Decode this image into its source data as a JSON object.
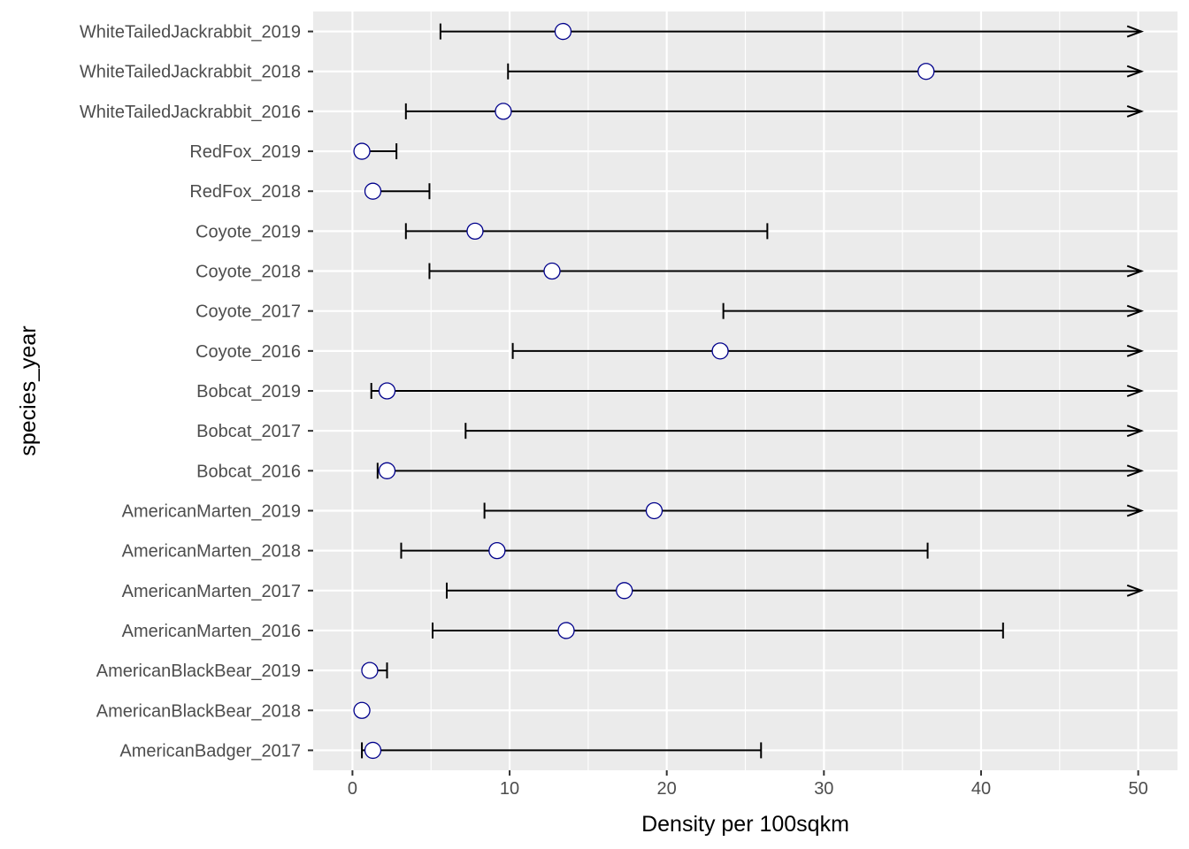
{
  "chart_data": {
    "type": "errorbar",
    "xlabel": "Density per 100sqkm",
    "ylabel": "species_year",
    "xlim": [
      -2.5,
      52.5
    ],
    "x_ticks": [
      0,
      10,
      20,
      30,
      40,
      50
    ],
    "x_minor_ticks": [
      5,
      15,
      25,
      35,
      45
    ],
    "grid": true,
    "legend": "none",
    "colors": {
      "panel_background": "#ebebeb",
      "grid": "#ffffff",
      "point_edge": "#00008b",
      "point_fill": "#ffffff",
      "interval": "#000000",
      "tick_label": "#4d4d4d"
    },
    "categories": [
      "AmericanBadger_2017",
      "AmericanBlackBear_2018",
      "AmericanBlackBear_2019",
      "AmericanMarten_2016",
      "AmericanMarten_2017",
      "AmericanMarten_2018",
      "AmericanMarten_2019",
      "Bobcat_2016",
      "Bobcat_2017",
      "Bobcat_2019",
      "Coyote_2016",
      "Coyote_2017",
      "Coyote_2018",
      "Coyote_2019",
      "RedFox_2018",
      "RedFox_2019",
      "WhiteTailedJackrabbit_2016",
      "WhiteTailedJackrabbit_2018",
      "WhiteTailedJackrabbit_2019"
    ],
    "points": [
      {
        "estimate": 1.3,
        "lower": 0.6,
        "upper": 26.0,
        "upper_truncated": false
      },
      {
        "estimate": 0.6,
        "lower": 0.5,
        "upper": 0.7,
        "upper_truncated": false
      },
      {
        "estimate": 1.1,
        "lower": 1.0,
        "upper": 2.2,
        "upper_truncated": false
      },
      {
        "estimate": 13.6,
        "lower": 5.1,
        "upper": 41.4,
        "upper_truncated": false
      },
      {
        "estimate": 17.3,
        "lower": 6.0,
        "upper": 50.2,
        "upper_truncated": true
      },
      {
        "estimate": 9.2,
        "lower": 3.1,
        "upper": 36.6,
        "upper_truncated": false
      },
      {
        "estimate": 19.2,
        "lower": 8.4,
        "upper": 50.2,
        "upper_truncated": true
      },
      {
        "estimate": 2.2,
        "lower": 1.6,
        "upper": 50.2,
        "upper_truncated": true
      },
      {
        "estimate": null,
        "lower": 7.2,
        "upper": 50.2,
        "upper_truncated": true
      },
      {
        "estimate": 2.2,
        "lower": 1.2,
        "upper": 50.2,
        "upper_truncated": true
      },
      {
        "estimate": 23.4,
        "lower": 10.2,
        "upper": 50.2,
        "upper_truncated": true
      },
      {
        "estimate": null,
        "lower": 23.6,
        "upper": 50.2,
        "upper_truncated": true
      },
      {
        "estimate": 12.7,
        "lower": 4.9,
        "upper": 50.2,
        "upper_truncated": true
      },
      {
        "estimate": 7.8,
        "lower": 3.4,
        "upper": 26.4,
        "upper_truncated": false
      },
      {
        "estimate": 1.3,
        "lower": 1.2,
        "upper": 4.9,
        "upper_truncated": false
      },
      {
        "estimate": 0.6,
        "lower": 0.5,
        "upper": 2.8,
        "upper_truncated": false
      },
      {
        "estimate": 9.6,
        "lower": 3.4,
        "upper": 50.2,
        "upper_truncated": true
      },
      {
        "estimate": 36.5,
        "lower": 9.9,
        "upper": 50.2,
        "upper_truncated": true
      },
      {
        "estimate": 13.4,
        "lower": 5.6,
        "upper": 50.2,
        "upper_truncated": true
      }
    ]
  }
}
